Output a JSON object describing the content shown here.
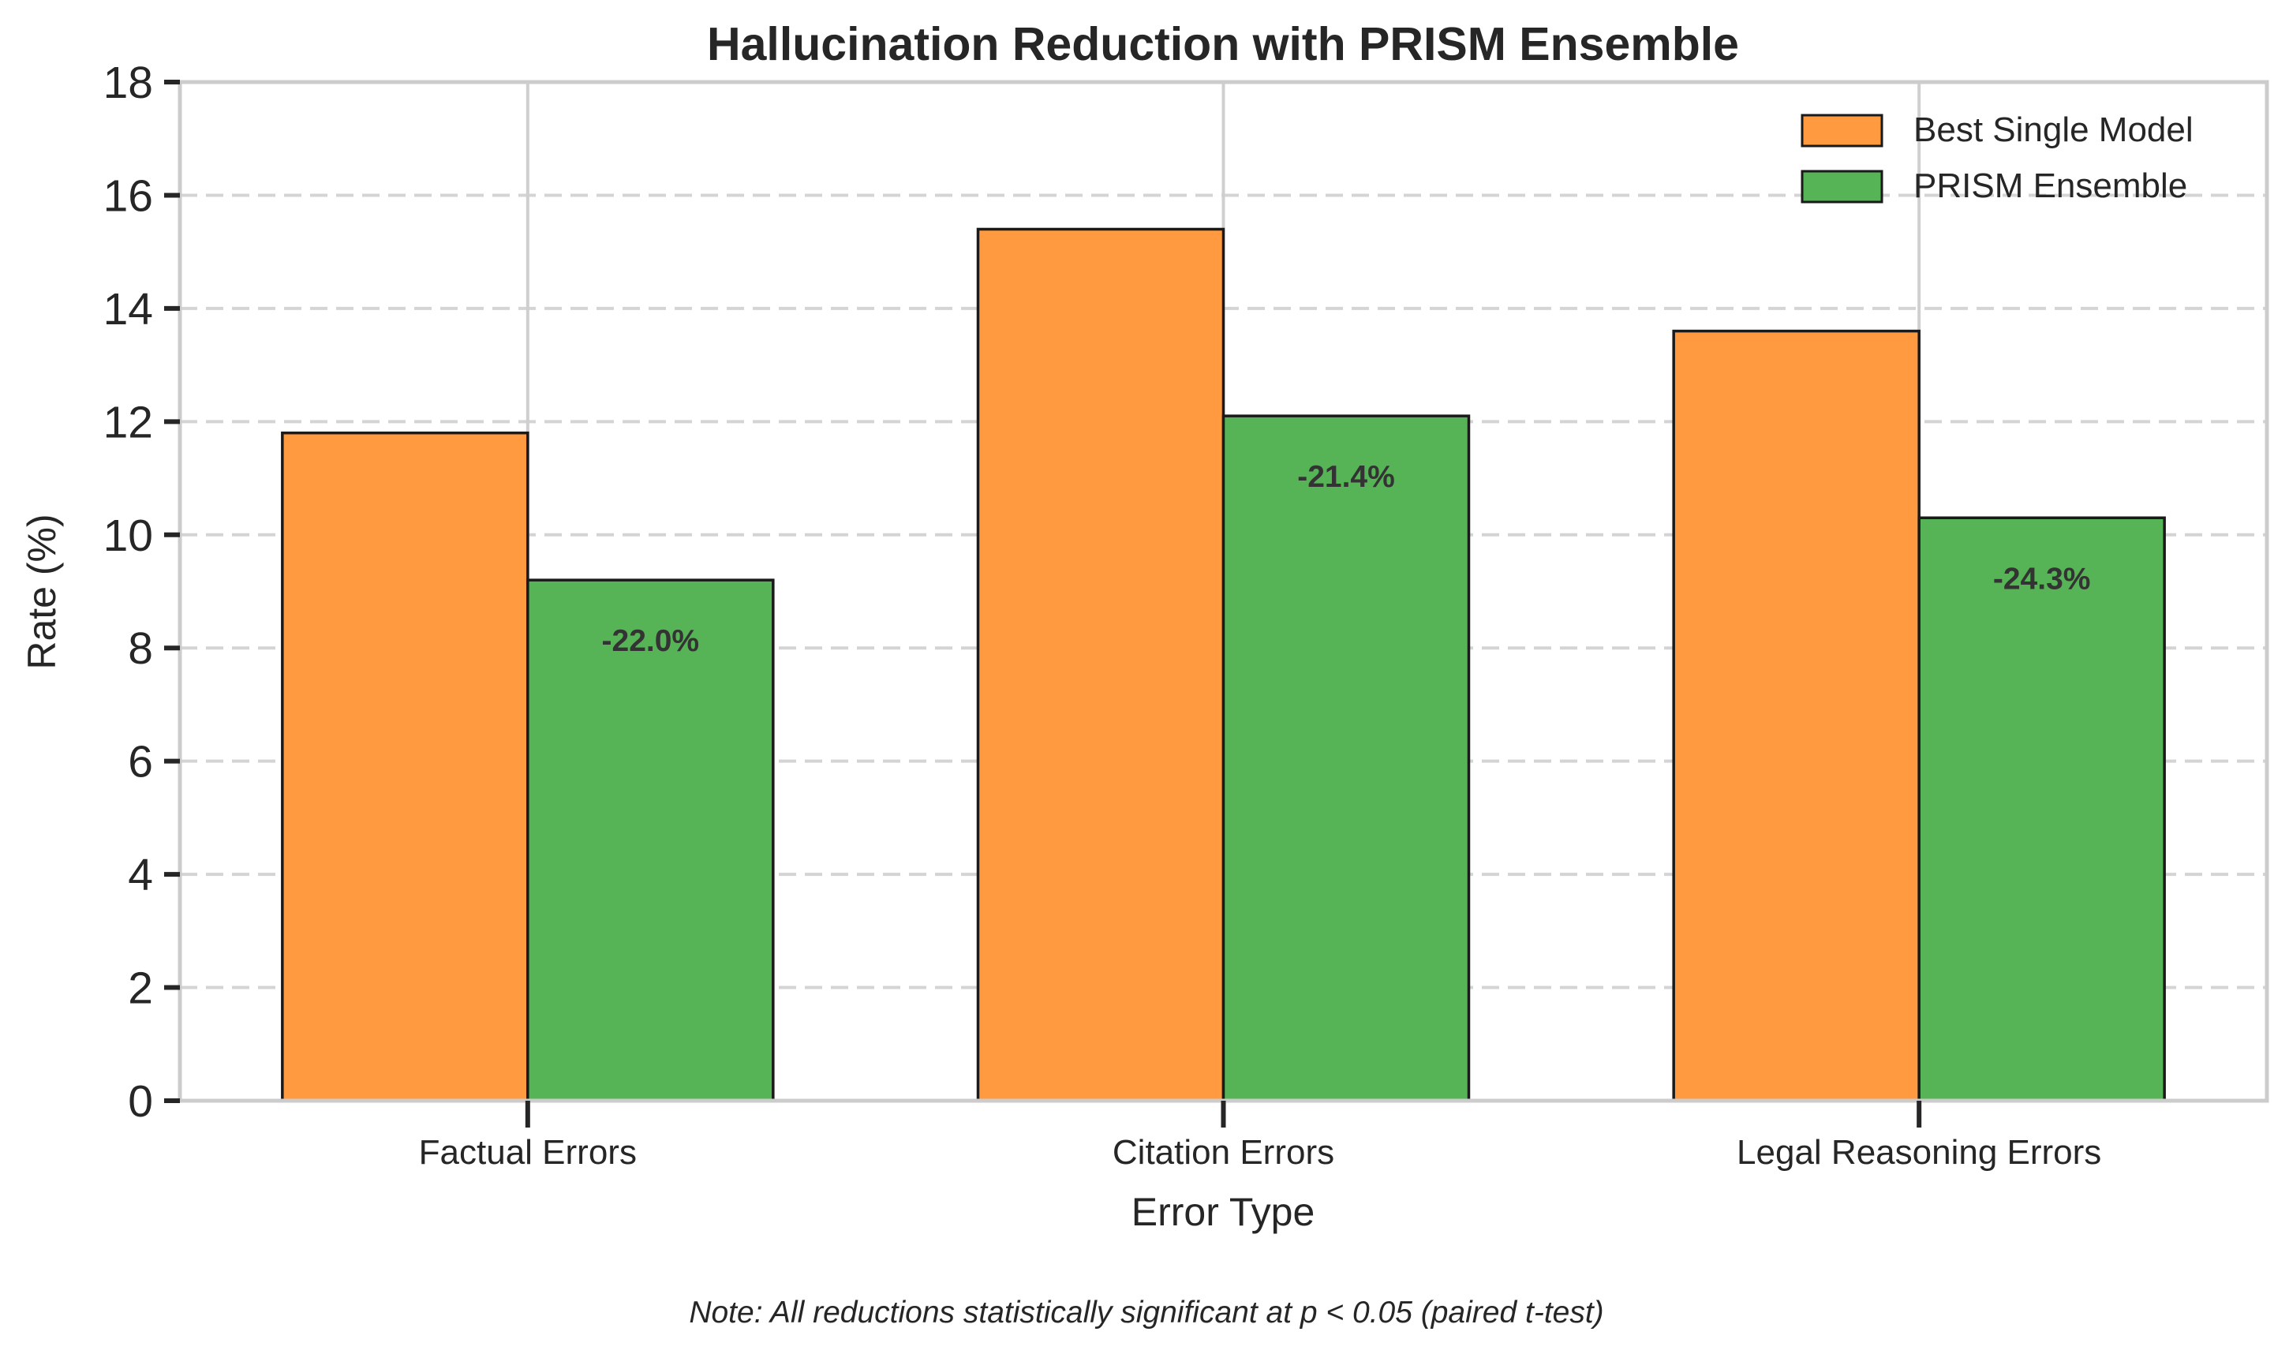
{
  "chart_data": {
    "type": "bar",
    "title": "Hallucination Reduction with PRISM Ensemble",
    "xlabel": "Error Type",
    "ylabel": "Rate (%)",
    "categories": [
      "Factual Errors",
      "Citation Errors",
      "Legal Reasoning Errors"
    ],
    "series": [
      {
        "name": "Best Single Model",
        "values": [
          11.8,
          15.4,
          13.6
        ],
        "color": "#ff9a40"
      },
      {
        "name": "PRISM Ensemble",
        "values": [
          9.2,
          12.1,
          10.3
        ],
        "color": "#56b356"
      }
    ],
    "annotations": [
      "-22.0%",
      "-21.4%",
      "-24.3%"
    ],
    "ylim": [
      0,
      18
    ],
    "yticks": [
      0,
      2,
      4,
      6,
      8,
      10,
      12,
      14,
      16,
      18
    ],
    "grid": true,
    "legend_position": "top-right",
    "footnote": "Note: All reductions statistically significant at p < 0.05 (paired t-test)"
  }
}
